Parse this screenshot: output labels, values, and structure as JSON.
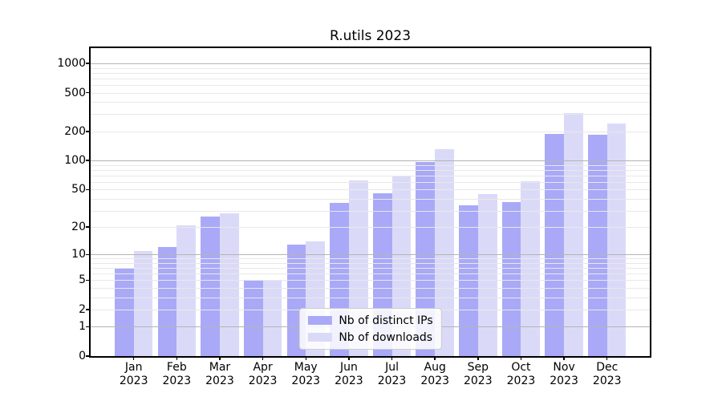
{
  "chart_data": {
    "type": "bar",
    "title": "R.utils 2023",
    "categories": [
      "Jan",
      "Feb",
      "Mar",
      "Apr",
      "May",
      "Jun",
      "Jul",
      "Aug",
      "Sep",
      "Oct",
      "Nov",
      "Dec"
    ],
    "xtick_year": "2023",
    "series": [
      {
        "name": "Nb of distinct IPs",
        "color": "#a9a9f8",
        "values": [
          7,
          12,
          26,
          5,
          13,
          36,
          46,
          96,
          34,
          37,
          190,
          186
        ]
      },
      {
        "name": "Nb of downloads",
        "color": "#dadaf8",
        "values": [
          11,
          21,
          28,
          5,
          14,
          62,
          69,
          130,
          45,
          61,
          310,
          240
        ]
      }
    ],
    "yscale": "log10(value+1)",
    "yticks": [
      0,
      1,
      2,
      5,
      10,
      20,
      50,
      100,
      200,
      500,
      1000
    ],
    "ylim": [
      0,
      1430
    ],
    "grid": {
      "on": true,
      "major_at": [
        1,
        10,
        100,
        1000
      ],
      "minor_at": [
        2,
        3,
        4,
        5,
        6,
        7,
        8,
        9,
        20,
        30,
        40,
        50,
        60,
        70,
        80,
        90,
        200,
        300,
        400,
        500,
        600,
        700,
        800,
        900
      ],
      "major_color": "#b4b4b4",
      "minor_color": "#e8e8e8"
    },
    "legend": {
      "position": "lower center"
    },
    "colors": {
      "spine": "#000000",
      "background": "#ffffff",
      "text": "#000000"
    }
  }
}
